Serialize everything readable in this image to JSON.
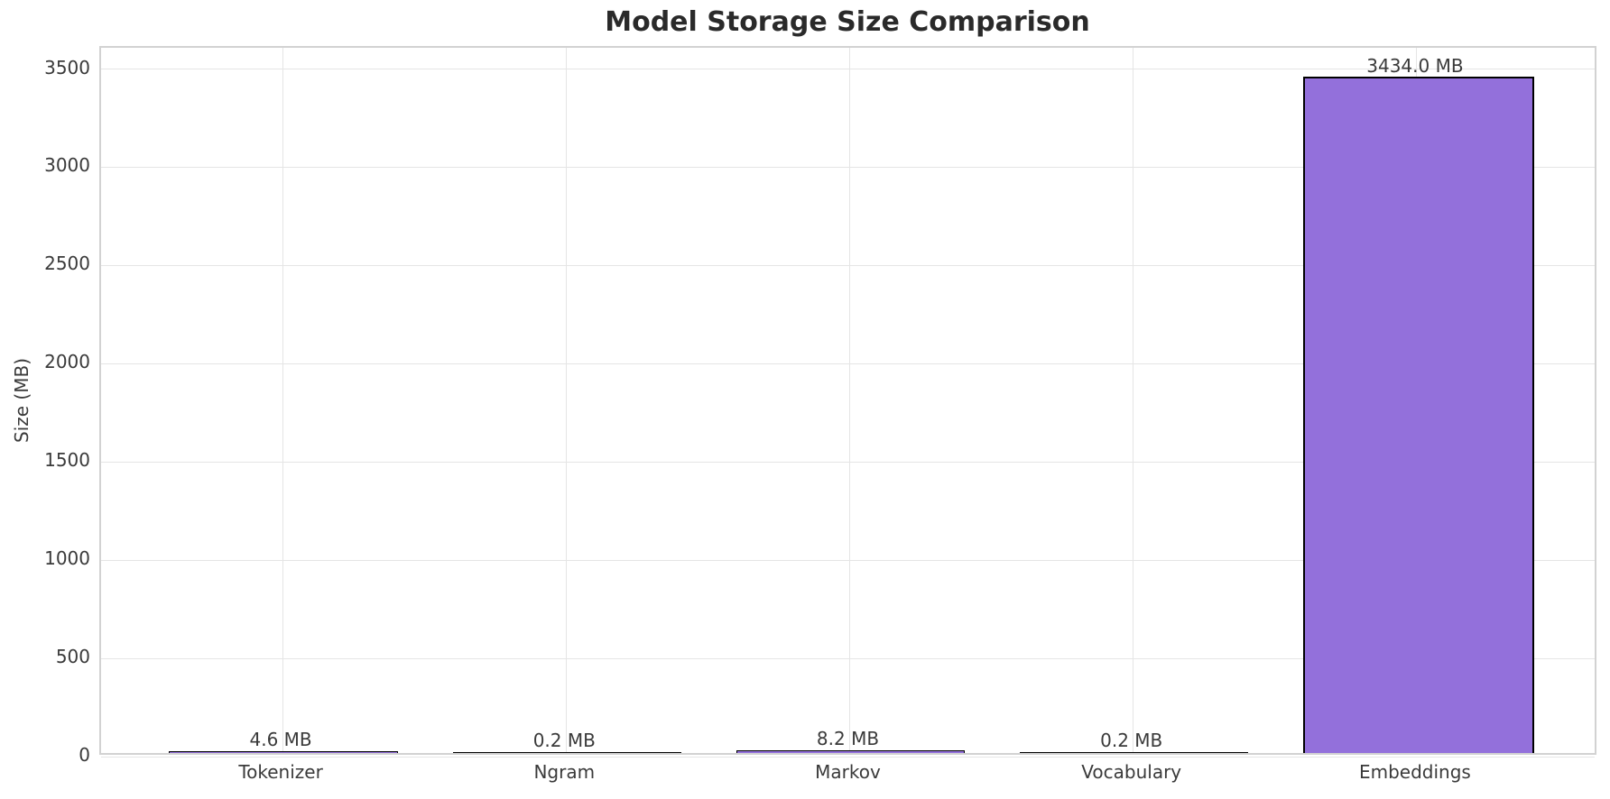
{
  "chart_data": {
    "type": "bar",
    "title": "Model Storage Size Comparison",
    "ylabel": "Size (MB)",
    "xlabel": "",
    "categories": [
      "Tokenizer",
      "Ngram",
      "Markov",
      "Vocabulary",
      "Embeddings"
    ],
    "values": [
      4.6,
      0.2,
      8.2,
      0.2,
      3434.0
    ],
    "bar_labels": [
      "4.6 MB",
      "0.2 MB",
      "8.2 MB",
      "0.2 MB",
      "3434.0 MB"
    ],
    "yticks": [
      0,
      500,
      1000,
      1500,
      2000,
      2500,
      3000,
      3500
    ],
    "ylim": [
      0,
      3608
    ],
    "x_margin": 0.64,
    "bar_width_fraction": 0.8,
    "grid": true,
    "legend": false,
    "colors": {
      "bar_fill": "#9370DB",
      "bar_edge": "#000000",
      "grid": "#e5e5e5",
      "spine": "#d2d2d2",
      "text": "#3a3a3a",
      "title_text": "#2a2a2a",
      "background": "#ffffff"
    }
  }
}
